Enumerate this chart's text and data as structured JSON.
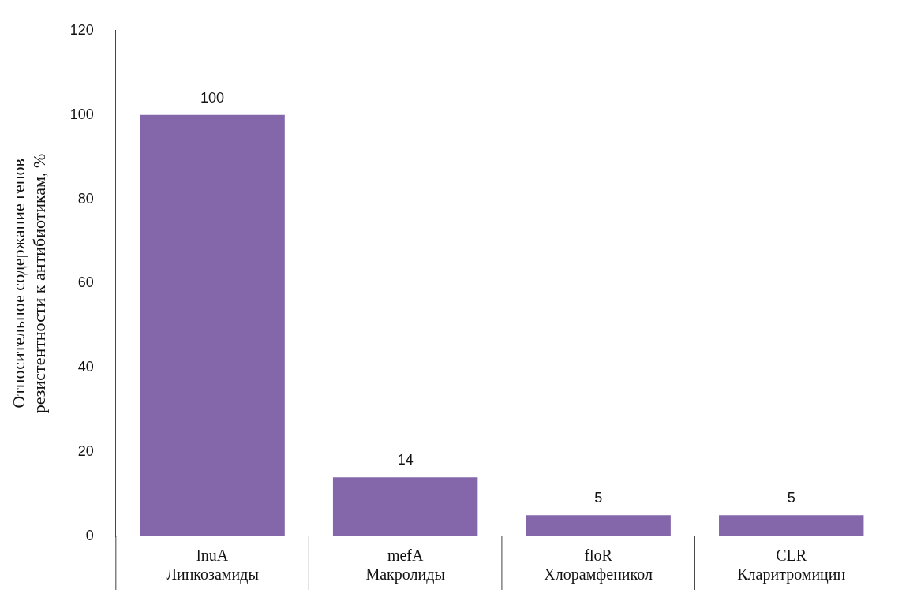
{
  "chart_data": {
    "type": "bar",
    "ylabel": "Относительное содержание генов\nрезистентности к антибиотикам, %",
    "categories": [
      "lnuA\nЛинкозамиды",
      "mefA\nМакролиды",
      "floR\nХлорамфеникол",
      "CLR\nКларитромицин"
    ],
    "values": [
      100,
      14,
      5,
      5
    ],
    "color": "#8467ab",
    "ylim": [
      0,
      120
    ],
    "yticks": [
      0,
      20,
      40,
      60,
      80,
      100,
      120
    ],
    "grid": false,
    "legend": false,
    "data_labels": true
  }
}
